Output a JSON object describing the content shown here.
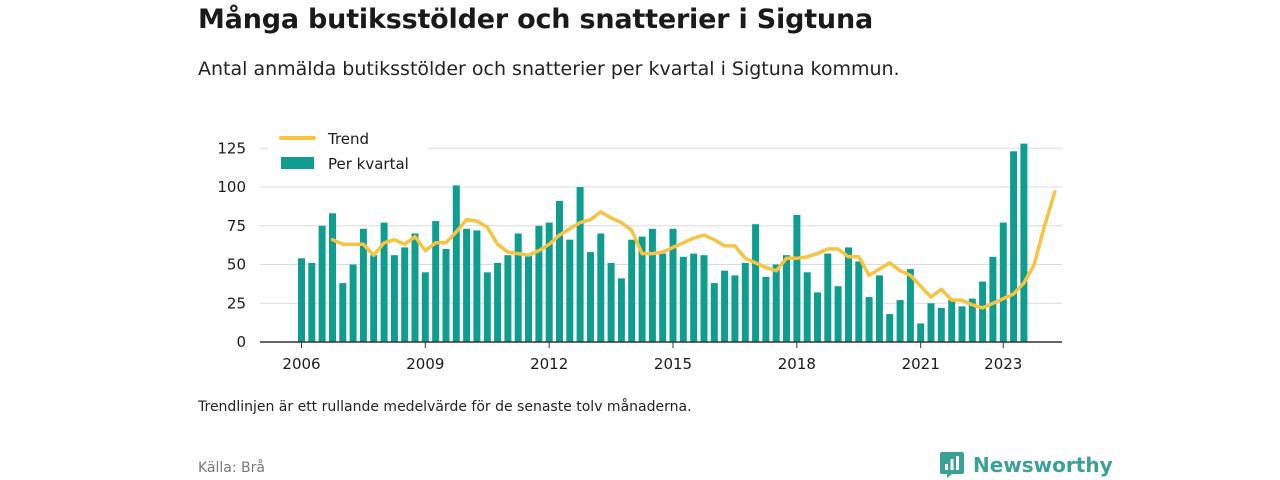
{
  "header": {
    "title": "Många butiksstölder och snatterier i Sigtuna",
    "subtitle": "Antal anmälda butiksstölder och snatterier per kvartal i Sigtuna kommun."
  },
  "footer": {
    "footnote": "Trendlinjen är ett rullande medelvärde för de senaste tolv månaderna.",
    "source": "Källa: Brå",
    "brand": "Newsworthy",
    "brand_icon": "newsworthy-chart-logo-icon"
  },
  "colors": {
    "bar": "#0f9d8f",
    "trend": "#f6c343",
    "grid": "#dcdcdc",
    "axis": "#333333",
    "brand": "#3aa196"
  },
  "chart_data": {
    "type": "bar",
    "legend": {
      "placement": "top-left",
      "items": [
        "Trend",
        "Per kvartal"
      ]
    },
    "grid": true,
    "ylim": [
      0,
      130
    ],
    "yticks": [
      0,
      25,
      50,
      75,
      100,
      125
    ],
    "xticks": [
      {
        "label": "2006",
        "year": 2006
      },
      {
        "label": "2009",
        "year": 2009
      },
      {
        "label": "2012",
        "year": 2012
      },
      {
        "label": "2015",
        "year": 2015
      },
      {
        "label": "2018",
        "year": 2018
      },
      {
        "label": "2021",
        "year": 2021
      },
      {
        "label": "2023",
        "year": 2023
      }
    ],
    "start": {
      "year": 2006,
      "quarter": 1
    },
    "series": [
      {
        "name": "Per kvartal",
        "type": "bar",
        "values": [
          54,
          51,
          75,
          83,
          38,
          50,
          73,
          56,
          77,
          56,
          61,
          70,
          45,
          78,
          60,
          101,
          73,
          72,
          45,
          51,
          56,
          70,
          56,
          75,
          77,
          91,
          66,
          100,
          58,
          70,
          51,
          41,
          66,
          68,
          73,
          57,
          73,
          55,
          57,
          56,
          38,
          46,
          43,
          51,
          76,
          42,
          50,
          56,
          82,
          45,
          32,
          57,
          36,
          61,
          52,
          29,
          43,
          18,
          27,
          47,
          12,
          25,
          22,
          27,
          23,
          28,
          39,
          55,
          77,
          123,
          128
        ]
      },
      {
        "name": "Trend",
        "type": "line",
        "values": [
          66,
          63,
          63,
          63,
          56,
          64,
          66,
          63,
          68,
          59,
          64,
          64,
          71,
          79,
          78,
          74,
          63,
          58,
          57,
          56,
          59,
          63,
          69,
          73,
          77,
          79,
          84,
          80,
          77,
          72,
          57,
          57,
          58,
          61,
          64,
          67,
          69,
          66,
          62,
          62,
          54,
          51,
          48,
          46,
          54,
          54,
          55,
          57,
          60,
          60,
          55,
          55,
          43,
          47,
          51,
          46,
          43,
          36,
          29,
          34,
          27,
          27,
          24,
          22,
          25,
          28,
          31,
          38,
          50,
          75,
          97
        ]
      }
    ]
  }
}
